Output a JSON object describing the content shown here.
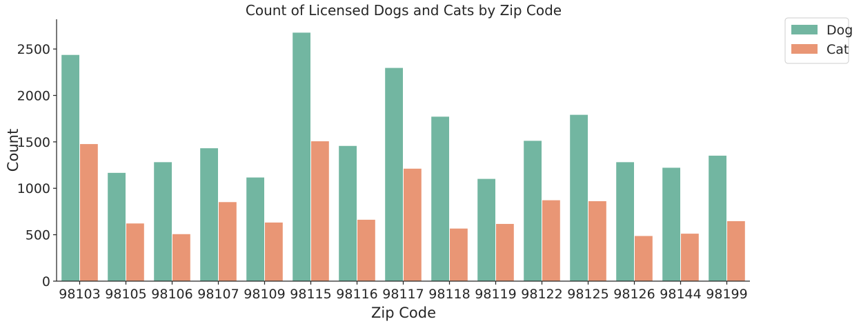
{
  "chart_data": {
    "type": "bar",
    "title": "Count of Licensed Dogs and Cats by Zip Code",
    "xlabel": "Zip Code",
    "ylabel": "Count",
    "categories": [
      "98103",
      "98105",
      "98106",
      "98107",
      "98109",
      "98115",
      "98116",
      "98117",
      "98118",
      "98119",
      "98122",
      "98125",
      "98126",
      "98144",
      "98199"
    ],
    "series": [
      {
        "name": "Dog",
        "color": "#72B6A1",
        "values": [
          2440,
          1170,
          1285,
          1435,
          1120,
          2680,
          1460,
          2300,
          1775,
          1105,
          1515,
          1795,
          1285,
          1225,
          1355
        ]
      },
      {
        "name": "Cat",
        "color": "#E99675",
        "values": [
          1480,
          625,
          510,
          855,
          635,
          1510,
          665,
          1215,
          570,
          620,
          875,
          865,
          490,
          515,
          650
        ]
      }
    ],
    "ylim": [
      0,
      2820
    ],
    "yticks": [
      0,
      500,
      1000,
      1500,
      2000,
      2500
    ],
    "grid": false,
    "legend_position": "upper-right-outside"
  }
}
